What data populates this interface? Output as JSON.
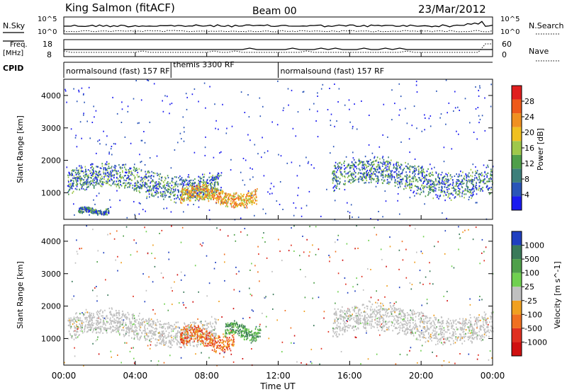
{
  "header": {
    "title": "King Salmon (fitACF)",
    "beam": "Beam 00",
    "date": "23/Mar/2012"
  },
  "top_panels": {
    "nsky_label": "N.Sky",
    "nsearch_label": "N.Search",
    "count_ticks": [
      "10^5",
      "10^0"
    ],
    "freq_label_1": "Freq.",
    "freq_label_2": "[MHz]",
    "freq_ticks": [
      "18",
      "8"
    ],
    "nave_label": "Nave",
    "nave_ticks": [
      "60",
      "0"
    ],
    "cpid_label": "CPID",
    "cpid_segments": [
      {
        "label": "normalsound (fast) 157 RF",
        "start": 0,
        "end": 6
      },
      {
        "label": "themis 3300 RF",
        "start": 6,
        "end": 12
      },
      {
        "label": "normalsound (fast) 157 RF",
        "start": 12,
        "end": 24
      }
    ]
  },
  "chart_data": [
    {
      "type": "heatmap",
      "name": "power",
      "ylabel": "Slant Range [km]",
      "ylim": [
        180,
        4500
      ],
      "yticks": [
        "1000",
        "2000",
        "3000",
        "4000"
      ],
      "xlim": [
        0,
        24
      ],
      "colorbar_label": "Power [dB]",
      "colorbar_ticks": [
        "4",
        "8",
        "12",
        "16",
        "20",
        "24",
        "28"
      ],
      "colors": [
        "#1b1bf0",
        "#2a55b8",
        "#3d7f7a",
        "#4f9f4a",
        "#9fc84a",
        "#f0c020",
        "#f09020",
        "#ee5a1a",
        "#e01e1e"
      ],
      "features": [
        {
          "from": 0.2,
          "to": 8.8,
          "range_start": 900,
          "range_end": 2000,
          "level": "medium"
        },
        {
          "from": 6.5,
          "to": 10.8,
          "range_start": 650,
          "range_end": 1300,
          "level": "high"
        },
        {
          "from": 0.8,
          "to": 2.5,
          "range_start": 360,
          "range_end": 600,
          "level": "medium"
        },
        {
          "from": 15.0,
          "to": 24.0,
          "range_start": 1000,
          "range_end": 2200,
          "level": "medium"
        }
      ]
    },
    {
      "type": "heatmap",
      "name": "velocity",
      "ylabel": "Slant Range [km]",
      "xlabel": "Time UT",
      "ylim": [
        180,
        4500
      ],
      "yticks": [
        "1000",
        "2000",
        "3000",
        "4000"
      ],
      "xlim": [
        0,
        24
      ],
      "xticks": [
        "00:00",
        "04:00",
        "08:00",
        "12:00",
        "16:00",
        "20:00",
        "00:00"
      ],
      "colorbar_label": "Velocity [m s^-1]",
      "colorbar_ticks": [
        "1000",
        "500",
        "100",
        "25",
        "-25",
        "-100",
        "-500",
        "-1000"
      ],
      "colors": [
        "#2040c0",
        "#3a7a5a",
        "#4fa04a",
        "#70d050",
        "#c0c0c0",
        "#f0a020",
        "#f07020",
        "#e03020",
        "#d01010"
      ],
      "features": [
        {
          "from": 0.2,
          "to": 8.5,
          "range_start": 900,
          "range_end": 2000,
          "level": "ground"
        },
        {
          "from": 6.5,
          "to": 9.5,
          "range_start": 700,
          "range_end": 1500,
          "level": "negative"
        },
        {
          "from": 9.0,
          "to": 11.0,
          "range_start": 1000,
          "range_end": 1600,
          "level": "positive"
        },
        {
          "from": 15.0,
          "to": 24.0,
          "range_start": 1000,
          "range_end": 2200,
          "level": "ground"
        }
      ]
    }
  ]
}
